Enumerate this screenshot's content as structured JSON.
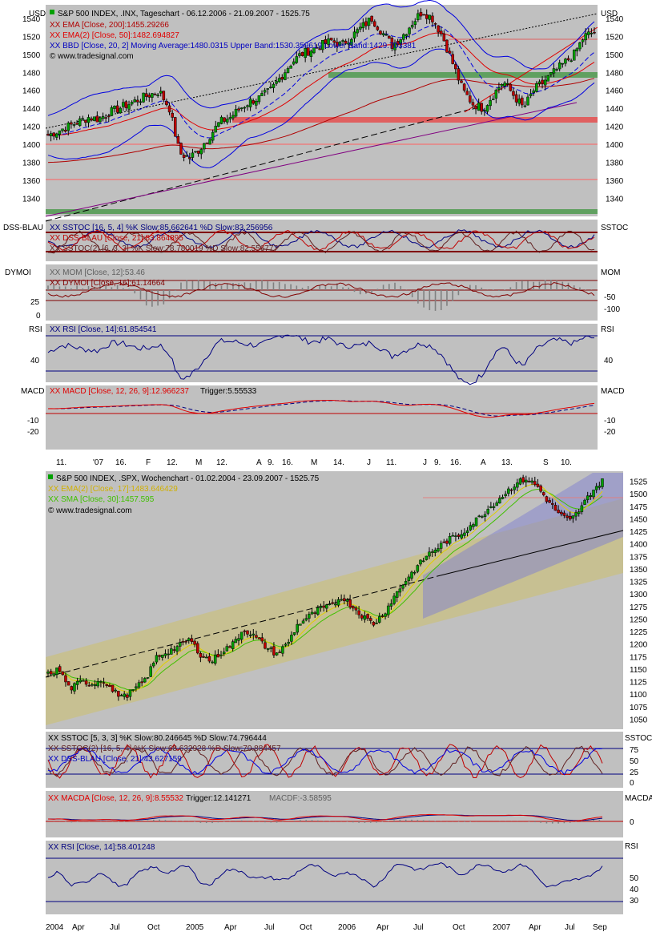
{
  "currency_label": "USD",
  "colors": {
    "panel_bg": "#c0c0c0",
    "candle_up": "#00a000",
    "candle_down": "#c00000",
    "ema200": "#b00000",
    "ema50": "#e00000",
    "bollinger": "#0000e0",
    "channel_fill": "#c8c08a",
    "upper_channel_fill": "#8080d0",
    "support_green": "#60a060",
    "support_red": "#e06060"
  },
  "top": {
    "title": "S&P 500 INDEX, .INX, Tageschart - 06.12.2006 - 21.09.2007 - 1525.75",
    "legend": [
      "XX EMA [Close, 200]:1455.29266",
      "XX EMA(2) [Close, 50]:1482.694827",
      "XX BBD [Close, 20, 2] Moving Average:1480.0315 Upper Band:1530.359619 Lower Band:1429.703381"
    ],
    "copyright": "© www.tradesignal.com",
    "y_ticks": [
      "1540",
      "1520",
      "1500",
      "1480",
      "1460",
      "1440",
      "1420",
      "1400",
      "1380",
      "1360",
      "1340"
    ],
    "sstoc_left": "DSS-BLAU",
    "sstoc_right": "SSTOC",
    "sstoc_legend": [
      "XX SSTOC [16, 5, 4] %K Slow:85.662641 %D Slow:83.256956",
      "XX DSS-BLAU [Close, 21]:83.864895",
      "XX SSTOC(2) [6, 3, 3] %K Slow:78.780019 %D Slow:82.556777"
    ],
    "mom_left": "DYMOI",
    "mom_right": "MOM",
    "mom_legend": [
      "XX MOM [Close, 12]:53.46",
      "XX DYMOI [Close, 16]:61.14664"
    ],
    "mom_left_ticks": [
      "25",
      "0"
    ],
    "mom_right_ticks": [
      "-50",
      "-100"
    ],
    "rsi_left": "RSI",
    "rsi_right": "RSI",
    "rsi_legend": "XX RSI [Close, 14]:61.854541",
    "rsi_tick": "40",
    "macd_left": "MACD",
    "macd_right": "MACD",
    "macd_legend": [
      "XX MACD [Close, 12, 26, 9]:12.966237",
      "Trigger:5.55533"
    ],
    "macd_ticks": [
      "-10",
      "-20"
    ],
    "x_labels": [
      "11.",
      "'07",
      "16.",
      "F",
      "12.",
      "M",
      "12.",
      "A",
      "9.",
      "16.",
      "M",
      "14.",
      "J",
      "11.",
      "J",
      "9.",
      "16.",
      "A",
      "13.",
      "S",
      "10."
    ]
  },
  "bottom": {
    "title": "S&P 500 INDEX, .SPX, Wochenchart - 01.02.2004 - 23.09.2007 - 1525.75",
    "legend": [
      "XX EMA(2) [Close, 17]:1483.646429",
      "XX SMA [Close, 30]:1457.595"
    ],
    "copyright": "© www.tradesignal.com",
    "y_ticks": [
      "1525",
      "1500",
      "1475",
      "1450",
      "1425",
      "1400",
      "1375",
      "1350",
      "1325",
      "1300",
      "1275",
      "1250",
      "1225",
      "1200",
      "1175",
      "1150",
      "1125",
      "1100",
      "1075",
      "1050"
    ],
    "sstoc_right": "SSTOC",
    "sstoc_legend": [
      "XX SSTOC [5, 3, 3] %K Slow:80.246645 %D Slow:74.796444",
      "XX SSTOC(2) [16, 5, 4] %K Slow:68.632928 %D Slow:70.884457",
      "XX DSS-BLAU [Close, 21]:43.627159"
    ],
    "sstoc_ticks": [
      "75",
      "50",
      "25",
      "0"
    ],
    "macd_right": "MACDA",
    "macd_legend": [
      "XX MACDA [Close, 12, 26, 9]:8.55532",
      "Trigger:12.141271",
      "MACDF:-3.58595"
    ],
    "macd_tick": "0",
    "rsi_right": "RSI",
    "rsi_legend": "XX RSI [Close, 14]:58.401248",
    "rsi_ticks": [
      "50",
      "40",
      "30"
    ],
    "x_labels": [
      "2004",
      "Apr",
      "Jul",
      "Oct",
      "2005",
      "Apr",
      "Jul",
      "Oct",
      "2006",
      "Apr",
      "Jul",
      "Oct",
      "2007",
      "Apr",
      "Jul",
      "Sep"
    ]
  },
  "chart_data": [
    {
      "type": "line",
      "title": "S&P 500 INDEX, .INX, Tageschart - 06.12.2006 - 21.09.2007 - 1525.75",
      "ylim": [
        1320,
        1555
      ],
      "approx_close_series": [
        1410,
        1415,
        1420,
        1425,
        1430,
        1428,
        1435,
        1440,
        1445,
        1450,
        1455,
        1459,
        1440,
        1390,
        1385,
        1395,
        1410,
        1425,
        1430,
        1440,
        1448,
        1452,
        1460,
        1475,
        1490,
        1500,
        1505,
        1510,
        1515,
        1510,
        1520,
        1530,
        1540,
        1525,
        1510,
        1520,
        1535,
        1548,
        1540,
        1520,
        1490,
        1460,
        1445,
        1440,
        1455,
        1470,
        1455,
        1440,
        1460,
        1470,
        1480,
        1490,
        1500,
        1520,
        1525
      ]
    },
    {
      "type": "line",
      "title": "S&P 500 INDEX, .SPX, Wochenchart - 01.02.2004 - 23.09.2007 - 1525.75",
      "ylim": [
        1030,
        1545
      ],
      "approx_close_series": [
        1140,
        1150,
        1110,
        1125,
        1120,
        1130,
        1105,
        1095,
        1110,
        1130,
        1175,
        1185,
        1195,
        1210,
        1180,
        1165,
        1185,
        1200,
        1230,
        1215,
        1195,
        1180,
        1200,
        1240,
        1255,
        1270,
        1275,
        1295,
        1275,
        1255,
        1240,
        1265,
        1300,
        1330,
        1355,
        1380,
        1395,
        1410,
        1420,
        1440,
        1460,
        1480,
        1500,
        1520,
        1530,
        1515,
        1485,
        1460,
        1445,
        1470,
        1505,
        1525
      ]
    }
  ]
}
